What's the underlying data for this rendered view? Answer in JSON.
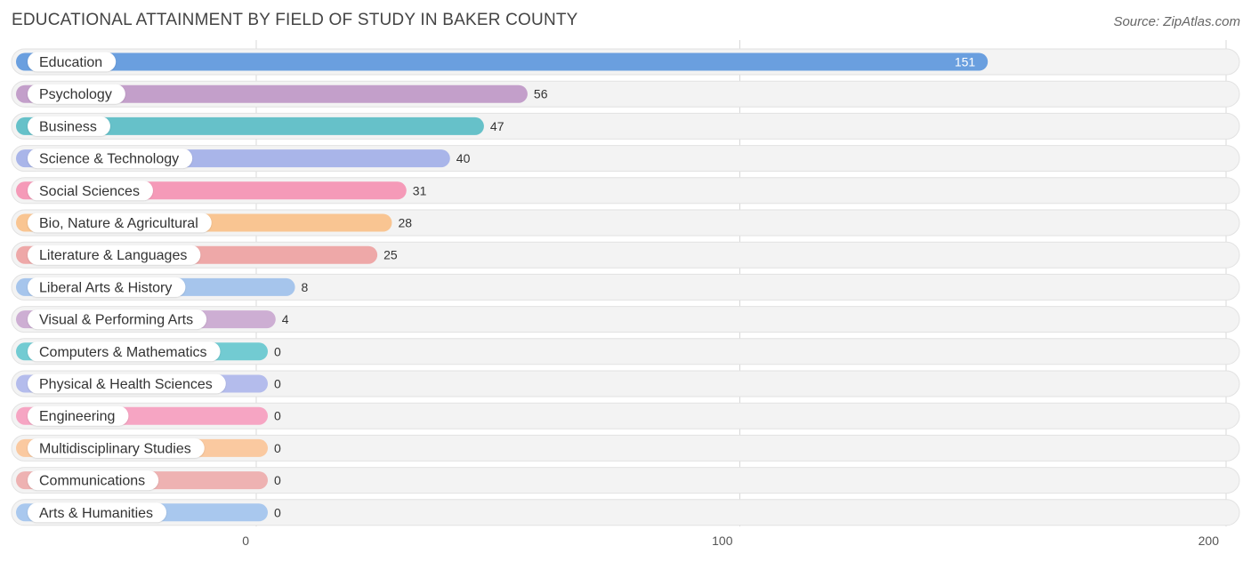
{
  "title": "EDUCATIONAL ATTAINMENT BY FIELD OF STUDY IN BAKER COUNTY",
  "source": "Source: ZipAtlas.com",
  "chart_data": {
    "type": "bar",
    "orientation": "horizontal",
    "categories": [
      "Education",
      "Psychology",
      "Business",
      "Science & Technology",
      "Social Sciences",
      "Bio, Nature & Agricultural",
      "Literature & Languages",
      "Liberal Arts & History",
      "Visual & Performing Arts",
      "Computers & Mathematics",
      "Physical & Health Sciences",
      "Engineering",
      "Multidisciplinary Studies",
      "Communications",
      "Arts & Humanities"
    ],
    "values": [
      151,
      56,
      47,
      40,
      31,
      28,
      25,
      8,
      4,
      0,
      0,
      0,
      0,
      0,
      0
    ],
    "value_labels": [
      "151",
      "56",
      "47",
      "40",
      "31",
      "28",
      "25",
      "8",
      "4",
      "0",
      "0",
      "0",
      "0",
      "0",
      "0"
    ],
    "colors": [
      "#6a9fdf",
      "#c39fca",
      "#66c1c9",
      "#a9b5e9",
      "#f59ab8",
      "#f9c592",
      "#eea8a8",
      "#a6c5ec",
      "#cdaed3",
      "#72cbd2",
      "#b4bcec",
      "#f6a5c3",
      "#fac9a0",
      "#eeb2b2",
      "#a9c8ee"
    ],
    "xlim": [
      0,
      200
    ],
    "xticks": [
      "0",
      "100",
      "200"
    ],
    "grid": true,
    "legend": "none"
  }
}
